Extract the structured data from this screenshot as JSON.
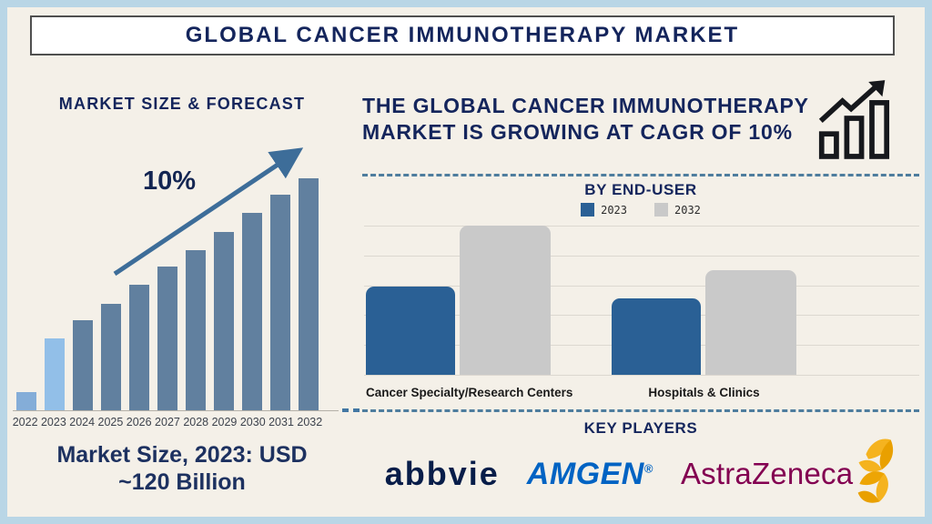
{
  "page": {
    "title": "GLOBAL CANCER IMMUNOTHERAPY MARKET"
  },
  "left_panel": {
    "heading": "MARKET SIZE & FORECAST",
    "growth_label": "10%",
    "caption_line1": "Market Size, 2023: USD",
    "caption_line2": "~120 Billion"
  },
  "right_panel": {
    "headline_line1": "THE GLOBAL CANCER IMMUNOTHERAPY",
    "headline_line2": "MARKET IS GROWING AT CAGR OF 10%",
    "end_user_title": "BY END-USER",
    "key_players_title": "KEY PLAYERS",
    "logos": [
      {
        "name": "abbvie",
        "color": "#071d49"
      },
      {
        "name": "AMGEN",
        "registered": "®",
        "color": "#0063c3"
      },
      {
        "name": "AstraZeneca",
        "color": "#830051",
        "symbol_color": "#f0ab00"
      }
    ]
  },
  "chart_data": [
    {
      "type": "bar",
      "title": "MARKET SIZE & FORECAST",
      "categories": [
        "2022",
        "2023",
        "2024",
        "2025",
        "2026",
        "2027",
        "2028",
        "2029",
        "2030",
        "2031",
        "2032"
      ],
      "values": [
        8,
        31,
        39,
        46,
        54,
        62,
        69,
        77,
        85,
        93,
        100
      ],
      "units": "relative bar height, % of 2032 bar (axis unlabeled)",
      "known_point": "Market Size, 2023: USD ~120 Billion",
      "annotation": "10% CAGR growth arrow",
      "bar_color_default": "#61809f",
      "bar_color_highlight": {
        "2022": "#84add8",
        "2023": "#92bfe8"
      },
      "xlabel": "",
      "ylabel": "",
      "grid": false,
      "legend_position": "none"
    },
    {
      "type": "bar",
      "title": "BY END-USER",
      "categories": [
        "Cancer Specialty/Research Centers",
        "Hospitals & Clinics"
      ],
      "series": [
        {
          "name": "2023",
          "color": "#2a6095",
          "values": [
            59,
            51
          ]
        },
        {
          "name": "2032",
          "color": "#c9c9c9",
          "values": [
            100,
            70
          ]
        }
      ],
      "units": "relative bar height, % of tallest bar (axis unlabeled)",
      "xlabel": "",
      "ylabel": "",
      "grid": true,
      "gridline_count": 6,
      "legend_position": "top"
    }
  ],
  "colors": {
    "frame_border": "#b9d6e6",
    "background": "#f4f0e8",
    "navy_text": "#14255c",
    "arrow_blue": "#3d6d99",
    "divider_blue": "#4e7d9e",
    "grid_gray": "#dcd8d0",
    "icon_black": "#16181c"
  }
}
